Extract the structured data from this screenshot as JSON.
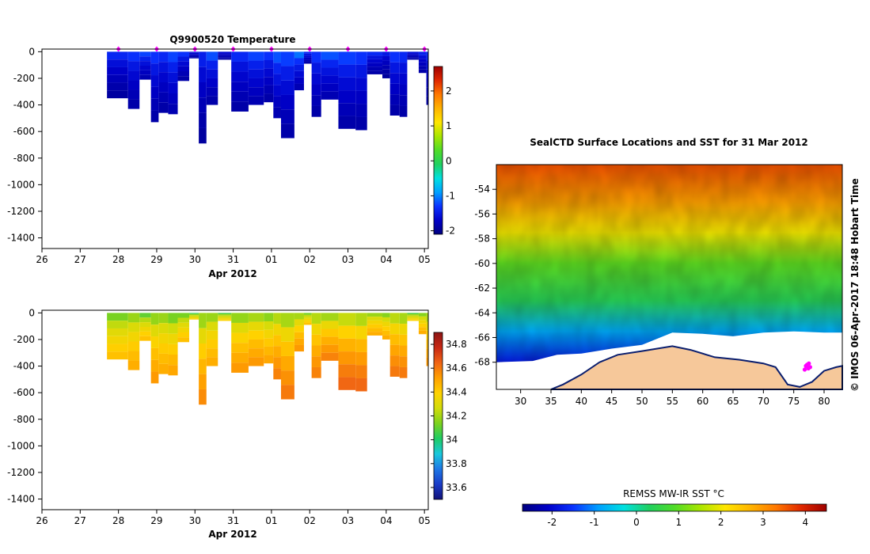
{
  "colors": {
    "temperature_ramp": [
      "#00007f",
      "#0000c8",
      "#0a32ff",
      "#00a0ff",
      "#00e0e0",
      "#20d060",
      "#50dc28",
      "#a8e600",
      "#ffe600",
      "#ffb400",
      "#ff7800",
      "#e02800",
      "#9e0000"
    ],
    "salinity_ramp": [
      "#12127a",
      "#1a3cc8",
      "#1e78e6",
      "#19c8dc",
      "#1ecc64",
      "#7cd21e",
      "#d2dc0a",
      "#ffd200",
      "#ffa000",
      "#f06414",
      "#c82814",
      "#8c1414"
    ],
    "sst_ramp": [
      "#00007f",
      "#0000c8",
      "#0a32ff",
      "#00a0ff",
      "#00e0e0",
      "#20d060",
      "#50dc28",
      "#a8e600",
      "#ffe600",
      "#ffb400",
      "#ff7800",
      "#e02800",
      "#9e0000"
    ],
    "land": "#f6c89a",
    "ice": "#ffffff",
    "station_marker": "#ff00ff"
  },
  "chart_data": [
    {
      "id": "temperature-section",
      "type": "heatmap",
      "title": "Q9900520  Temperature",
      "xlabel": "Apr 2012",
      "ylabel": "",
      "x_ticks": [
        "26",
        "27",
        "28",
        "29",
        "30",
        "31",
        "01",
        "02",
        "03",
        "04",
        "05"
      ],
      "x_range_days": [
        26,
        36.1
      ],
      "y_ticks": [
        0,
        -200,
        -400,
        -600,
        -800,
        -1000,
        -1200,
        -1400
      ],
      "y_range": [
        -1480,
        20
      ],
      "colorbar": {
        "ticks": [
          2,
          1,
          0,
          -1,
          -2
        ],
        "range": [
          -2.1,
          2.7
        ]
      },
      "marker_days": [
        28,
        29,
        30,
        31,
        32,
        33,
        34,
        35,
        36
      ],
      "profiles": [
        {
          "start": 27.7,
          "end": 28.25,
          "max_depth": -350,
          "surface": -1.0,
          "deep": -1.95
        },
        {
          "start": 28.25,
          "end": 28.55,
          "max_depth": -430,
          "surface": -0.9,
          "deep": -1.9
        },
        {
          "start": 28.55,
          "end": 28.85,
          "max_depth": -210,
          "surface": -0.8,
          "deep": -1.85
        },
        {
          "start": 28.85,
          "end": 29.05,
          "max_depth": -530,
          "surface": -0.9,
          "deep": -1.9
        },
        {
          "start": 29.05,
          "end": 29.3,
          "max_depth": -460,
          "surface": -1.0,
          "deep": -1.9
        },
        {
          "start": 29.3,
          "end": 29.55,
          "max_depth": -470,
          "surface": -0.8,
          "deep": -1.85
        },
        {
          "start": 29.55,
          "end": 29.85,
          "max_depth": -220,
          "surface": -0.9,
          "deep": -1.9
        },
        {
          "start": 29.85,
          "end": 30.1,
          "max_depth": -50,
          "surface": -1.3,
          "deep": -1.9
        },
        {
          "start": 30.1,
          "end": 30.3,
          "max_depth": -690,
          "surface": -1.1,
          "deep": -1.95
        },
        {
          "start": 30.3,
          "end": 30.6,
          "max_depth": -400,
          "surface": -0.7,
          "deep": -1.9
        },
        {
          "start": 30.6,
          "end": 30.95,
          "max_depth": -60,
          "surface": -1.4,
          "deep": -1.9
        },
        {
          "start": 30.95,
          "end": 31.4,
          "max_depth": -450,
          "surface": -1.0,
          "deep": -1.9
        },
        {
          "start": 31.4,
          "end": 31.8,
          "max_depth": -400,
          "surface": -0.8,
          "deep": -1.85
        },
        {
          "start": 31.8,
          "end": 32.05,
          "max_depth": -380,
          "surface": -0.9,
          "deep": -1.9
        },
        {
          "start": 32.05,
          "end": 32.25,
          "max_depth": -500,
          "surface": -0.7,
          "deep": -1.85
        },
        {
          "start": 32.25,
          "end": 32.6,
          "max_depth": -650,
          "surface": -0.8,
          "deep": -1.9
        },
        {
          "start": 32.6,
          "end": 32.85,
          "max_depth": -290,
          "surface": -0.5,
          "deep": -1.85
        },
        {
          "start": 32.85,
          "end": 33.05,
          "max_depth": -90,
          "surface": -1.0,
          "deep": -1.9
        },
        {
          "start": 33.05,
          "end": 33.3,
          "max_depth": -490,
          "surface": -0.9,
          "deep": -1.9
        },
        {
          "start": 33.3,
          "end": 33.75,
          "max_depth": -360,
          "surface": -0.7,
          "deep": -1.85
        },
        {
          "start": 33.75,
          "end": 34.2,
          "max_depth": -580,
          "surface": -0.8,
          "deep": -1.9
        },
        {
          "start": 34.2,
          "end": 34.5,
          "max_depth": -590,
          "surface": -0.9,
          "deep": -1.9
        },
        {
          "start": 34.5,
          "end": 34.9,
          "max_depth": -170,
          "surface": -1.0,
          "deep": -1.9
        },
        {
          "start": 34.9,
          "end": 35.1,
          "max_depth": -200,
          "surface": -1.2,
          "deep": -1.95
        },
        {
          "start": 35.1,
          "end": 35.35,
          "max_depth": -480,
          "surface": -0.9,
          "deep": -1.9
        },
        {
          "start": 35.35,
          "end": 35.55,
          "max_depth": -490,
          "surface": -1.0,
          "deep": -1.9
        },
        {
          "start": 35.55,
          "end": 35.85,
          "max_depth": -60,
          "surface": -1.3,
          "deep": -1.9
        },
        {
          "start": 35.85,
          "end": 36.05,
          "max_depth": -160,
          "surface": -1.1,
          "deep": -1.9
        },
        {
          "start": 36.05,
          "end": 36.1,
          "max_depth": -400,
          "surface": -1.0,
          "deep": -1.9
        }
      ]
    },
    {
      "id": "salinity-section",
      "type": "heatmap",
      "title": "",
      "xlabel": "Apr 2012",
      "ylabel": "",
      "x_ticks": [
        "26",
        "27",
        "28",
        "29",
        "30",
        "31",
        "01",
        "02",
        "03",
        "04",
        "05"
      ],
      "x_range_days": [
        26,
        36.1
      ],
      "y_ticks": [
        0,
        -200,
        -400,
        -600,
        -800,
        -1000,
        -1200,
        -1400
      ],
      "y_range": [
        -1480,
        20
      ],
      "colorbar": {
        "ticks": [
          34.8,
          34.6,
          34.4,
          34.2,
          34,
          33.8,
          33.6
        ],
        "range": [
          33.5,
          34.9
        ]
      },
      "profiles": [
        {
          "start": 27.7,
          "end": 28.25,
          "max_depth": -350,
          "surface": 33.9,
          "deep": 34.45
        },
        {
          "start": 28.25,
          "end": 28.55,
          "max_depth": -430,
          "surface": 33.95,
          "deep": 34.5
        },
        {
          "start": 28.55,
          "end": 28.85,
          "max_depth": -210,
          "surface": 33.85,
          "deep": 34.45
        },
        {
          "start": 28.85,
          "end": 29.05,
          "max_depth": -530,
          "surface": 33.9,
          "deep": 34.55
        },
        {
          "start": 29.05,
          "end": 29.3,
          "max_depth": -460,
          "surface": 33.95,
          "deep": 34.5
        },
        {
          "start": 29.3,
          "end": 29.55,
          "max_depth": -470,
          "surface": 33.85,
          "deep": 34.52
        },
        {
          "start": 29.55,
          "end": 29.85,
          "max_depth": -220,
          "surface": 33.9,
          "deep": 34.45
        },
        {
          "start": 29.85,
          "end": 30.1,
          "max_depth": -50,
          "surface": 33.8,
          "deep": 34.4
        },
        {
          "start": 30.1,
          "end": 30.3,
          "max_depth": -690,
          "surface": 33.9,
          "deep": 34.58
        },
        {
          "start": 30.3,
          "end": 30.6,
          "max_depth": -400,
          "surface": 33.95,
          "deep": 34.5
        },
        {
          "start": 30.6,
          "end": 30.95,
          "max_depth": -60,
          "surface": 33.85,
          "deep": 34.4
        },
        {
          "start": 30.95,
          "end": 31.4,
          "max_depth": -450,
          "surface": 33.9,
          "deep": 34.55
        },
        {
          "start": 31.4,
          "end": 31.8,
          "max_depth": -400,
          "surface": 33.95,
          "deep": 34.55
        },
        {
          "start": 31.8,
          "end": 32.05,
          "max_depth": -380,
          "surface": 33.9,
          "deep": 34.52
        },
        {
          "start": 32.05,
          "end": 32.25,
          "max_depth": -500,
          "surface": 33.95,
          "deep": 34.6
        },
        {
          "start": 32.25,
          "end": 32.6,
          "max_depth": -650,
          "surface": 33.9,
          "deep": 34.62
        },
        {
          "start": 32.6,
          "end": 32.85,
          "max_depth": -290,
          "surface": 33.95,
          "deep": 34.55
        },
        {
          "start": 32.85,
          "end": 33.05,
          "max_depth": -90,
          "surface": 33.9,
          "deep": 34.45
        },
        {
          "start": 33.05,
          "end": 33.3,
          "max_depth": -490,
          "surface": 33.95,
          "deep": 34.6
        },
        {
          "start": 33.3,
          "end": 33.75,
          "max_depth": -360,
          "surface": 33.9,
          "deep": 34.6
        },
        {
          "start": 33.75,
          "end": 34.2,
          "max_depth": -580,
          "surface": 33.95,
          "deep": 34.66
        },
        {
          "start": 34.2,
          "end": 34.5,
          "max_depth": -590,
          "surface": 33.9,
          "deep": 34.66
        },
        {
          "start": 34.5,
          "end": 34.9,
          "max_depth": -170,
          "surface": 33.95,
          "deep": 34.5
        },
        {
          "start": 34.9,
          "end": 35.1,
          "max_depth": -200,
          "surface": 33.9,
          "deep": 34.5
        },
        {
          "start": 35.1,
          "end": 35.35,
          "max_depth": -480,
          "surface": 33.95,
          "deep": 34.62
        },
        {
          "start": 35.35,
          "end": 35.55,
          "max_depth": -490,
          "surface": 33.9,
          "deep": 34.62
        },
        {
          "start": 35.55,
          "end": 35.85,
          "max_depth": -60,
          "surface": 33.85,
          "deep": 34.4
        },
        {
          "start": 35.85,
          "end": 36.05,
          "max_depth": -160,
          "surface": 33.9,
          "deep": 34.5
        },
        {
          "start": 36.05,
          "end": 36.1,
          "max_depth": -400,
          "surface": 33.95,
          "deep": 34.55
        }
      ]
    },
    {
      "id": "sst-map",
      "type": "heatmap",
      "title": "SealCTD Surface Locations and SST for 31 Mar 2012",
      "xlabel": "",
      "ylabel": "",
      "lon_range": [
        26,
        83
      ],
      "lat_range": [
        -70.2,
        -52
      ],
      "x_ticks": [
        30,
        35,
        40,
        45,
        50,
        55,
        60,
        65,
        70,
        75,
        80
      ],
      "y_ticks": [
        -54,
        -56,
        -58,
        -60,
        -62,
        -64,
        -66,
        -68
      ],
      "colorbar": {
        "label": "REMSS MW-IR SST °C",
        "ticks": [
          -2,
          -1,
          0,
          1,
          2,
          3,
          4
        ],
        "range": [
          -2.7,
          4.5
        ]
      },
      "sst_by_latitude": [
        {
          "lat": -52,
          "sst": 3.6
        },
        {
          "lat": -55,
          "sst": 2.9
        },
        {
          "lat": -57.5,
          "sst": 2.0
        },
        {
          "lat": -60,
          "sst": 1.0
        },
        {
          "lat": -63,
          "sst": 0.4
        },
        {
          "lat": -65.5,
          "sst": -0.8
        },
        {
          "lat": -68,
          "sst": -1.8
        }
      ],
      "ice_edge": [
        [
          26,
          -68.0
        ],
        [
          32,
          -67.9
        ],
        [
          36,
          -67.4
        ],
        [
          40,
          -67.3
        ],
        [
          45,
          -66.9
        ],
        [
          50,
          -66.6
        ],
        [
          55,
          -65.6
        ],
        [
          60,
          -65.7
        ],
        [
          65,
          -65.9
        ],
        [
          70,
          -65.6
        ],
        [
          75,
          -65.5
        ],
        [
          80,
          -65.6
        ],
        [
          83,
          -65.6
        ]
      ],
      "coastline": [
        [
          35,
          -70.2
        ],
        [
          37,
          -69.8
        ],
        [
          40,
          -69.0
        ],
        [
          43,
          -68.0
        ],
        [
          46,
          -67.4
        ],
        [
          50,
          -67.1
        ],
        [
          55,
          -66.7
        ],
        [
          58,
          -67.0
        ],
        [
          62,
          -67.6
        ],
        [
          66,
          -67.8
        ],
        [
          70,
          -68.1
        ],
        [
          72,
          -68.4
        ],
        [
          74,
          -69.8
        ],
        [
          76,
          -70.0
        ],
        [
          78,
          -69.6
        ],
        [
          80,
          -68.7
        ],
        [
          82,
          -68.4
        ],
        [
          83,
          -68.3
        ]
      ],
      "seal_locations": [
        [
          77.0,
          -68.3
        ],
        [
          77.4,
          -68.5
        ],
        [
          77.2,
          -68.2
        ],
        [
          77.7,
          -68.4
        ],
        [
          76.8,
          -68.6
        ],
        [
          77.5,
          -68.1
        ]
      ],
      "credit": "© IMOS 06-Apr-2017 18:48 Hobart Time"
    }
  ]
}
